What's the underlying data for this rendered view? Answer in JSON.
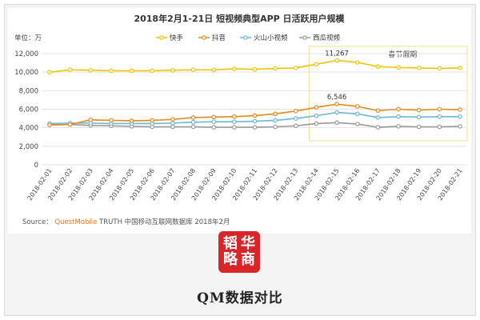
{
  "chart_data": {
    "type": "line",
    "title": "2018年2月1-21日 短视频典型APP 日活跃用户规模",
    "unit_label": "单位：万",
    "ylim": [
      0,
      12000
    ],
    "yticks": [
      "0",
      "2,000",
      "4,000",
      "6,000",
      "8,000",
      "10,000",
      "12,000"
    ],
    "grid": true,
    "legend_position": "top-center",
    "x": [
      "2018-02-01",
      "2018-02-02",
      "2018-02-03",
      "2018-02-04",
      "2018-02-05",
      "2018-02-06",
      "2018-02-07",
      "2018-02-08",
      "2018-02-09",
      "2018-02-10",
      "2018-02-11",
      "2018-02-12",
      "2018-02-13",
      "2018-02-14",
      "2018-02-15",
      "2018-02-16",
      "2018-02-17",
      "2018-02-18",
      "2018-02-19",
      "2018-02-20",
      "2018-02-21"
    ],
    "series": [
      {
        "name": "快手",
        "color": "#f2c300",
        "values": [
          10000,
          10250,
          10200,
          10150,
          10150,
          10150,
          10200,
          10250,
          10250,
          10350,
          10300,
          10400,
          10450,
          10850,
          11267,
          11050,
          10600,
          10500,
          10450,
          10400,
          10450
        ]
      },
      {
        "name": "抖音",
        "color": "#e8881a",
        "values": [
          4300,
          4350,
          4850,
          4800,
          4750,
          4800,
          4900,
          5100,
          5150,
          5200,
          5300,
          5500,
          5800,
          6200,
          6546,
          6300,
          5850,
          6000,
          5900,
          6000,
          5950
        ]
      },
      {
        "name": "火山小视频",
        "color": "#69b6df",
        "values": [
          4450,
          4500,
          4500,
          4450,
          4450,
          4450,
          4500,
          4600,
          4650,
          4650,
          4700,
          4800,
          5000,
          5300,
          5650,
          5500,
          5100,
          5200,
          5150,
          5200,
          5200
        ]
      },
      {
        "name": "西瓜视频",
        "color": "#9a9a9a",
        "values": [
          4300,
          4350,
          4250,
          4200,
          4150,
          4100,
          4100,
          4100,
          4050,
          4050,
          4050,
          4100,
          4200,
          4450,
          4550,
          4400,
          4050,
          4150,
          4100,
          4100,
          4150
        ]
      }
    ],
    "annotations": [
      {
        "text": "11,267",
        "x_index": 14,
        "series": 0
      },
      {
        "text": "6,546",
        "x_index": 14,
        "series": 1
      },
      {
        "text": "春节假期",
        "box_from_index": 13,
        "box_to_index": 20,
        "highlight": "#f4e6a0"
      }
    ]
  },
  "source": {
    "label": "Source：",
    "brand": "QuestMobile",
    "rest": "TRUTH 中国移动互联网数据库 2018年2月"
  },
  "logo": {
    "chars": [
      "韬",
      "华",
      "略",
      "商"
    ]
  },
  "caption": "QM数据对比"
}
